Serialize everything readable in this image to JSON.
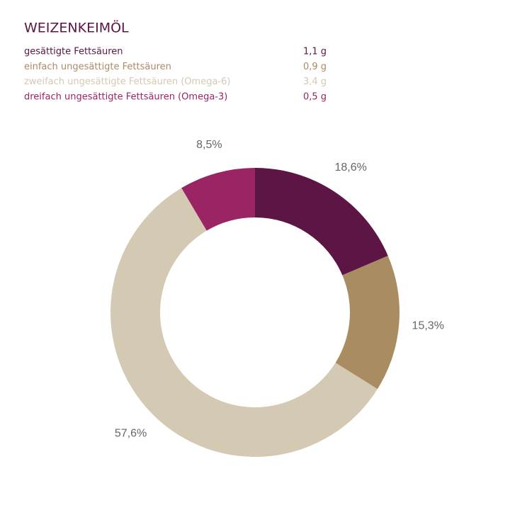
{
  "chart_data": {
    "type": "pie",
    "donut": true,
    "title": "WEIZENKEIMÖL",
    "categories": [
      "gesättigte Fettsäuren",
      "einfach ungesättigte Fettsäuren",
      "zweifach ungesättigte Fettsäuren (Omega-6)",
      "dreifach ungesättigte Fettsäuren (Omega-3)"
    ],
    "amounts": [
      1.1,
      0.9,
      3.4,
      0.5
    ],
    "amount_labels": [
      "1,1 g",
      "0,9 g",
      "3,4 g",
      "0,5 g"
    ],
    "values": [
      18.6,
      15.3,
      57.6,
      8.5
    ],
    "value_labels": [
      "18,6%",
      "15,3%",
      "57,6%",
      "8,5%"
    ],
    "colors": [
      "#5c1544",
      "#a98c62",
      "#d4c9b3",
      "#9b2464"
    ]
  }
}
